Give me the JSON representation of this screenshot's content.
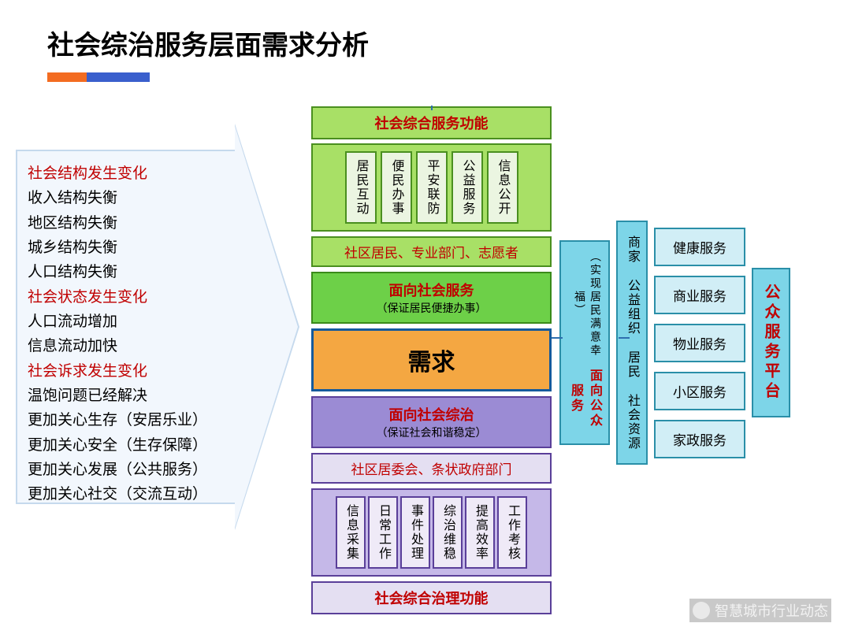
{
  "title": "社会综治服务层面需求分析",
  "title_bar": {
    "orange_w": 50,
    "blue_w": 80,
    "orange_color": "#f36c21",
    "blue_color": "#3a5fcd"
  },
  "left_panel": {
    "bg": "#f2f7fd",
    "border": "#c5d9ed",
    "items": [
      {
        "text": "社会结构发生变化",
        "red": true
      },
      {
        "text": "收入结构失衡",
        "red": false
      },
      {
        "text": "地区结构失衡",
        "red": false
      },
      {
        "text": "城乡结构失衡",
        "red": false
      },
      {
        "text": "人口结构失衡",
        "red": false
      },
      {
        "text": "社会状态发生变化",
        "red": true
      },
      {
        "text": "人口流动增加",
        "red": false
      },
      {
        "text": "信息流动加快",
        "red": false
      },
      {
        "text": "社会诉求发生变化",
        "red": true
      },
      {
        "text": "温饱问题已经解决",
        "red": false
      },
      {
        "text": "更加关心生存（安居乐业）",
        "red": false
      },
      {
        "text": "更加关心安全（生存保障）",
        "red": false
      },
      {
        "text": "更加关心发展（公共服务）",
        "red": false
      },
      {
        "text": "更加关心社交（交流互动）",
        "red": false
      }
    ]
  },
  "center": {
    "top_header": "社会综合服务功能",
    "top_items": [
      "居民互动",
      "便民办事",
      "平安联防",
      "公益服务",
      "信息公开"
    ],
    "top_actors": "社区居民、专业部门、志愿者",
    "service_title": "面向社会服务",
    "service_sub": "（保证居民便捷办事）",
    "demand": "需求",
    "governance_title": "面向社会综治",
    "governance_sub": "（保证社会和谐稳定）",
    "bottom_actors": "社区居委会、条状政府部门",
    "bottom_items": [
      "信息采集",
      "日常工作",
      "事件处理",
      "综治维稳",
      "提高效率",
      "工作考核"
    ],
    "bottom_footer": "社会综合治理功能",
    "colors": {
      "green_bg": "#a8e066",
      "green_border": "#4a8f1f",
      "green_item_bg": "#ebf5e1",
      "service_bg": "#6dd048",
      "demand_bg": "#f4a742",
      "demand_border": "#155a9c",
      "gov_bg": "#9b8bd4",
      "gov_border": "#5a3f99",
      "purple_bg": "#c5b8e8",
      "purple_item_bg": "#efeaf7",
      "purple_thin_bg": "#e4dff2"
    }
  },
  "right": {
    "strip1_title": "面向公众服务",
    "strip1_sub": "（实现居民满意幸福）",
    "strip2": "商家 公益组织 居民 社会资源",
    "services": [
      "健康服务",
      "商业服务",
      "物业服务",
      "小区服务",
      "家政服务"
    ],
    "platform": "公众服务平台",
    "colors": {
      "cyan_bg": "#7dd5e8",
      "cyan_border": "#2a8fa8",
      "item_bg": "#d1eef6"
    }
  },
  "watermark": "智慧城市行业动态"
}
